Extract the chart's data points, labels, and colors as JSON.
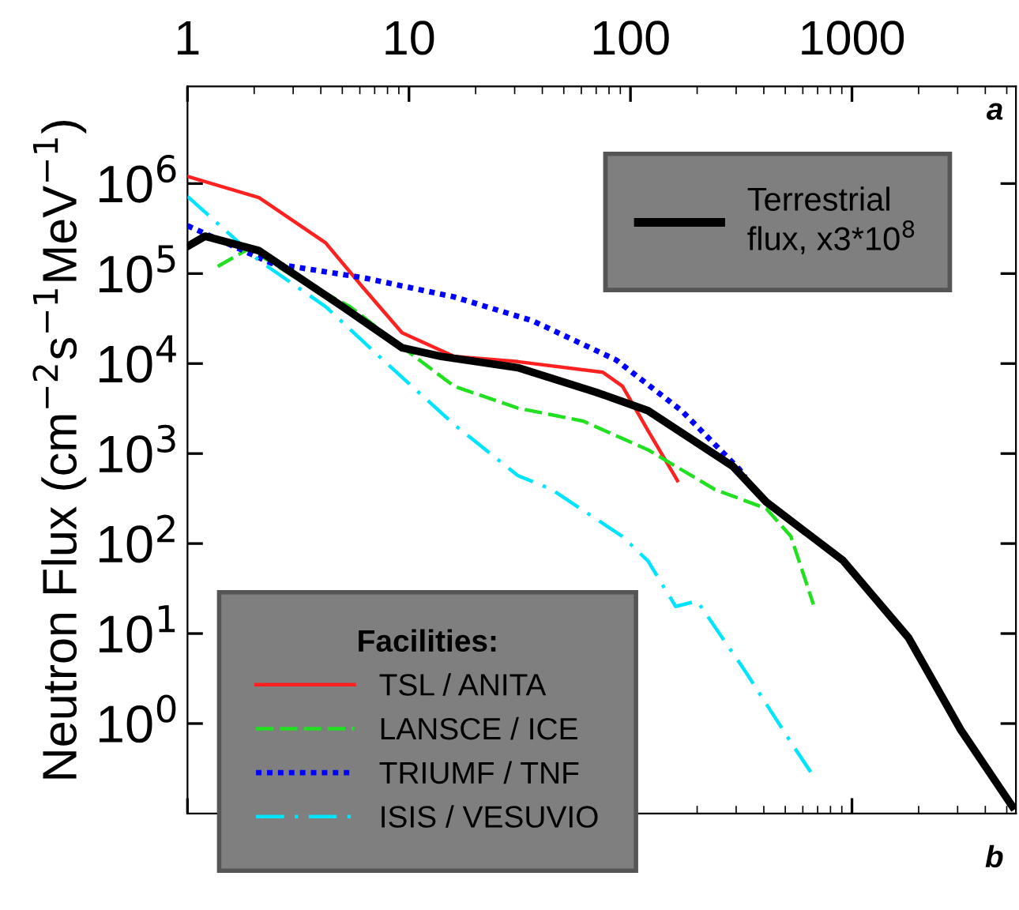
{
  "chart_data": {
    "type": "line",
    "ylabel": "Neutron Flux (cm$^{−2}$s$^{−1}$MeV$^{−1}$)",
    "legend_title": "Facilities:",
    "log": "xy",
    "xlim": [
      1,
      5500
    ],
    "xticks": [
      1,
      10,
      100,
      1000
    ],
    "ylim": [
      0.1,
      12000000
    ],
    "yticks": [
      {
        "value": 1,
        "label": "10$^{0}$"
      },
      {
        "value": 10,
        "label": "10$^{1}$"
      },
      {
        "value": 100,
        "label": "10$^{2}$"
      },
      {
        "value": 1000,
        "label": "10$^{3}$"
      },
      {
        "value": 10000,
        "label": "10$^{4}$"
      },
      {
        "value": 100000,
        "label": "10$^{5}$"
      },
      {
        "value": 1000000,
        "label": "10$^{6}$"
      }
    ],
    "grid": false,
    "legend": "bottom left",
    "annotations": [
      "a",
      "b"
    ],
    "series": [
      {
        "name": "Terrestrial\nflux, x3*10$^{8}$",
        "color": "#000000",
        "line_style": "solid",
        "x": [
          1,
          1.2,
          2.1,
          5,
          9.3,
          14,
          31,
          70,
          120,
          290,
          410,
          910,
          1800,
          3100,
          5300
        ],
        "values": [
          200000,
          260000,
          180000,
          43000,
          15000,
          12000,
          9000,
          4800,
          3000,
          720,
          290,
          65,
          9,
          0.85,
          0.12
        ]
      },
      {
        "name": "TSL / ANITA",
        "color": "#ff2020",
        "line_style": "solid",
        "x": [
          1,
          2.1,
          4.2,
          6.2,
          9.3,
          16,
          31,
          75,
          92,
          120,
          163
        ],
        "values": [
          1200000,
          700000,
          220000,
          70000,
          22000,
          12000,
          10500,
          8000,
          5600,
          1800,
          500
        ]
      },
      {
        "name": "LANSCE / ICE",
        "color": "#20e020",
        "line_style": "dashed",
        "x": [
          1.37,
          1.9,
          2.95,
          5.4,
          10.6,
          16,
          31,
          61,
          120,
          240,
          410,
          530,
          670
        ],
        "values": [
          120000,
          190000,
          96000,
          43000,
          12000,
          5600,
          3200,
          2300,
          1100,
          400,
          245,
          120,
          21
        ]
      },
      {
        "name": "TRIUMF / TNF",
        "color": "#0000ff",
        "line_style": "dotted",
        "x": [
          1,
          2.4,
          6.2,
          16,
          36,
          86,
          170,
          310,
          330
        ],
        "values": [
          340000,
          130000,
          90000,
          55000,
          30000,
          11000,
          3000,
          670,
          550
        ]
      },
      {
        "name": "ISIS / VESUVIO",
        "color": "#00e5ff",
        "line_style": "dashdot",
        "x": [
          1,
          2.1,
          4.2,
          8.1,
          16,
          31,
          44,
          92,
          120,
          160,
          200,
          330,
          530,
          670
        ],
        "values": [
          720000,
          140000,
          43000,
          9600,
          2100,
          570,
          400,
          120,
          64,
          20,
          23,
          3.8,
          0.62,
          0.26
        ]
      }
    ]
  }
}
